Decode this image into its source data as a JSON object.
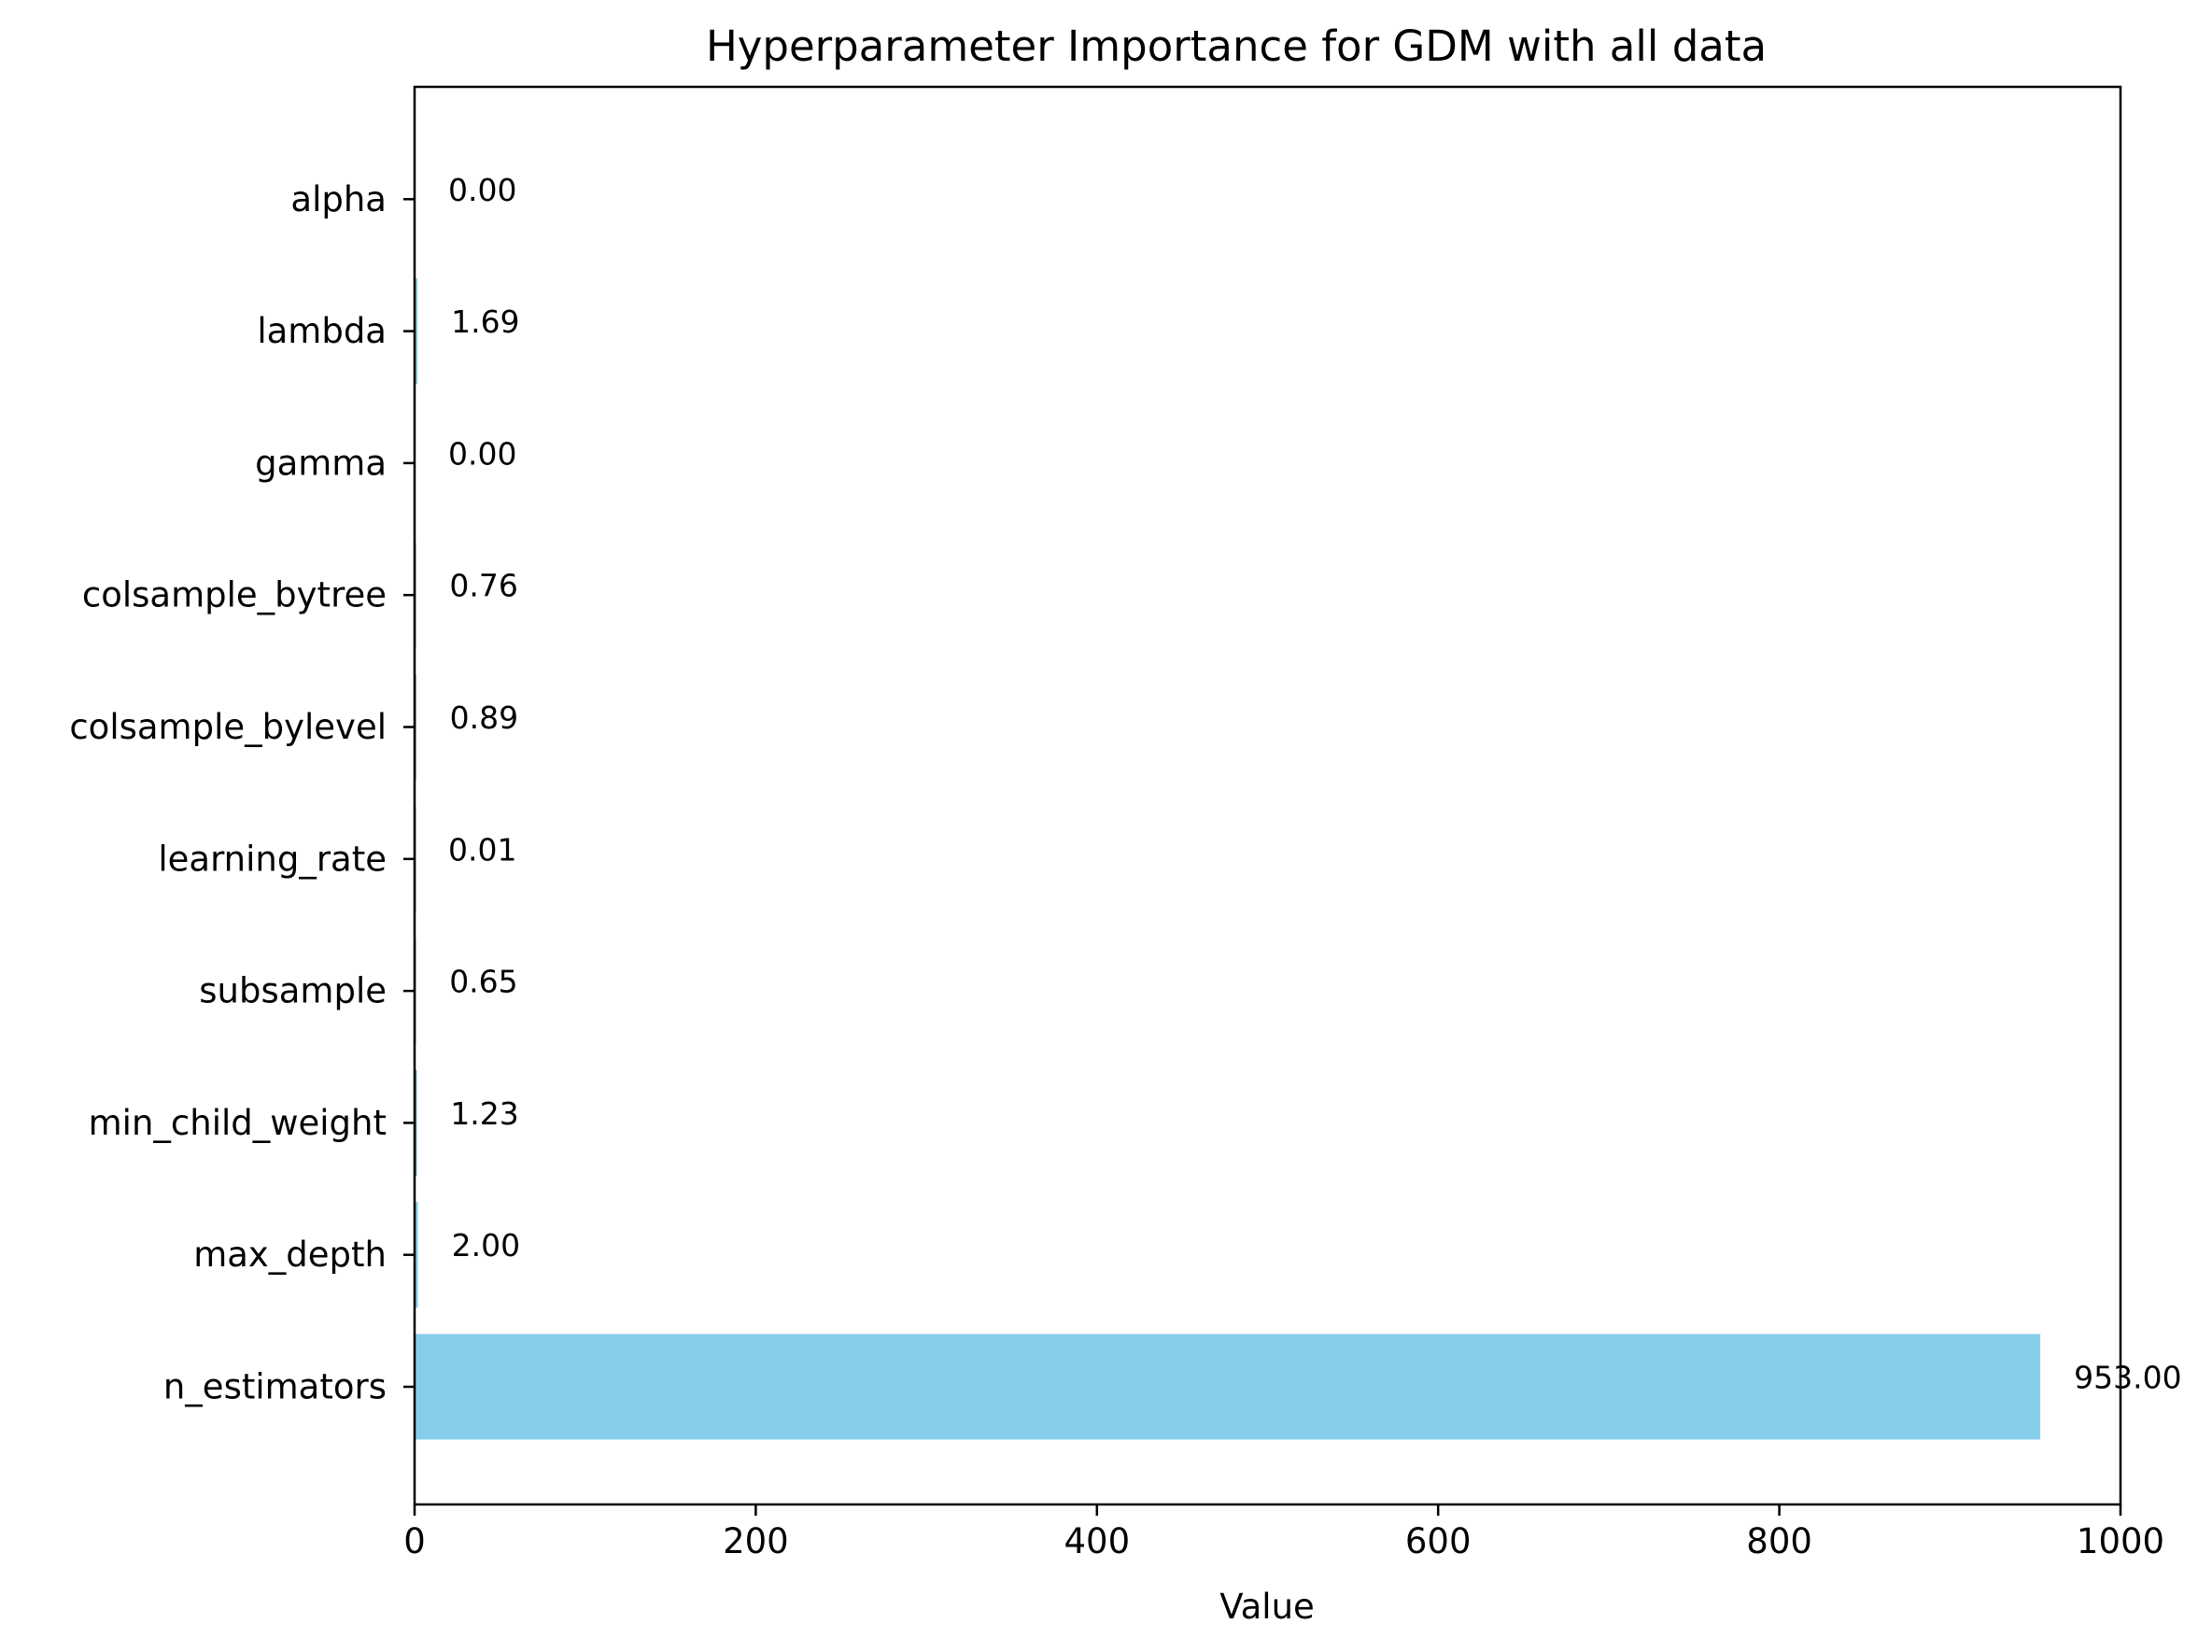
{
  "chart_data": {
    "type": "bar",
    "orientation": "horizontal",
    "title": "Hyperparameter Importance for GDM with all data",
    "xlabel": "Value",
    "ylabel": "",
    "categories": [
      "n_estimators",
      "max_depth",
      "min_child_weight",
      "subsample",
      "learning_rate",
      "colsample_bylevel",
      "colsample_bytree",
      "gamma",
      "lambda",
      "alpha"
    ],
    "values": [
      953.0,
      2.0,
      1.23,
      0.65,
      0.01,
      0.89,
      0.76,
      0.0,
      1.69,
      0.0
    ],
    "data_labels": [
      "953.00",
      "2.00",
      "1.23",
      "0.65",
      "0.01",
      "0.89",
      "0.76",
      "0.00",
      "1.69",
      "0.00"
    ],
    "xlim": [
      0,
      1000
    ],
    "xticks": [
      0,
      200,
      400,
      600,
      800,
      1000
    ],
    "xtick_labels": [
      "0",
      "200",
      "400",
      "600",
      "800",
      "1000"
    ],
    "bar_color": "#87ceeb",
    "grid": false,
    "legend": "none"
  }
}
